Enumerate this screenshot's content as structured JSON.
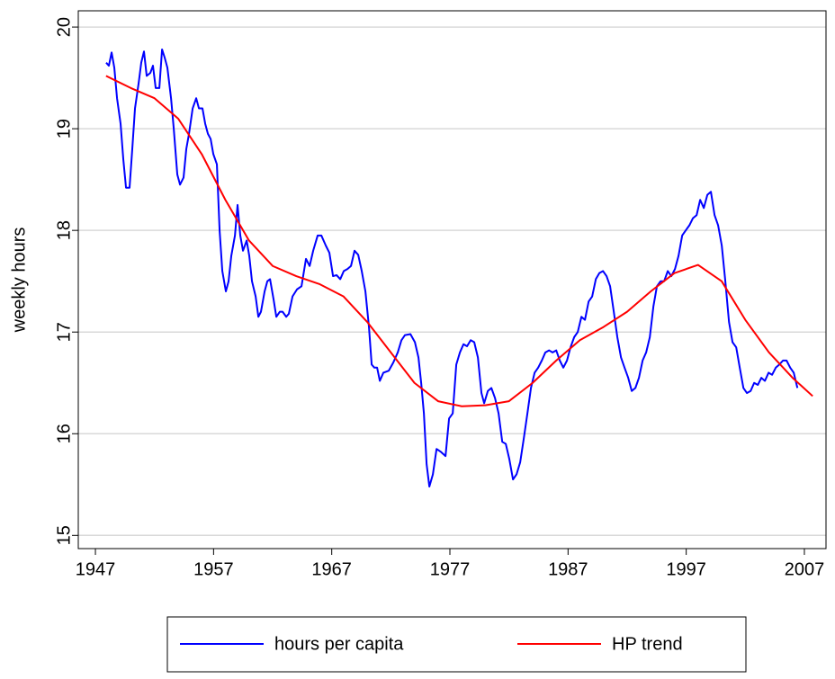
{
  "chart_data": {
    "type": "line",
    "ylabel": "weekly hours",
    "xlim": [
      1945.55,
      2008.83
    ],
    "xticks": [
      1947,
      1957,
      1967,
      1977,
      1987,
      1997,
      2007
    ],
    "ylim": [
      14.87,
      20.16
    ],
    "yticks": [
      15,
      16,
      17,
      18,
      19,
      20
    ],
    "grid": true,
    "legend": "bottom",
    "series": [
      {
        "name": "hours per capita",
        "color": "#0000ff",
        "x": [
          1947.91,
          1948.14,
          1948.37,
          1948.6,
          1948.83,
          1949.13,
          1949.36,
          1949.59,
          1949.89,
          1950.12,
          1950.35,
          1950.66,
          1950.88,
          1951.11,
          1951.34,
          1951.65,
          1951.87,
          1952.1,
          1952.41,
          1952.64,
          1952.86,
          1953.09,
          1953.4,
          1953.63,
          1953.93,
          1954.16,
          1954.46,
          1954.69,
          1954.92,
          1955.23,
          1955.53,
          1955.76,
          1956.06,
          1956.29,
          1956.52,
          1956.75,
          1956.98,
          1957.28,
          1957.51,
          1957.74,
          1958.04,
          1958.27,
          1958.5,
          1958.81,
          1959.03,
          1959.26,
          1959.49,
          1959.8,
          1960.02,
          1960.25,
          1960.56,
          1960.79,
          1961.01,
          1961.32,
          1961.55,
          1961.78,
          1962.08,
          1962.31,
          1962.61,
          1962.84,
          1963.15,
          1963.37,
          1963.68,
          1964.06,
          1964.44,
          1964.82,
          1965.13,
          1965.43,
          1965.81,
          1966.12,
          1966.5,
          1966.8,
          1967.11,
          1967.41,
          1967.72,
          1968.02,
          1968.33,
          1968.63,
          1968.93,
          1969.24,
          1969.54,
          1969.85,
          1970.15,
          1970.38,
          1970.61,
          1970.84,
          1971.07,
          1971.37,
          1971.83,
          1972.21,
          1972.59,
          1972.9,
          1973.2,
          1973.66,
          1974.04,
          1974.34,
          1974.57,
          1974.8,
          1975.03,
          1975.26,
          1975.56,
          1975.87,
          1976.25,
          1976.63,
          1976.93,
          1977.24,
          1977.54,
          1977.85,
          1978.15,
          1978.45,
          1978.76,
          1979.06,
          1979.37,
          1979.67,
          1979.9,
          1980.21,
          1980.51,
          1980.82,
          1981.12,
          1981.43,
          1981.73,
          1982.03,
          1982.34,
          1982.64,
          1982.95,
          1983.25,
          1983.56,
          1983.86,
          1984.17,
          1984.47,
          1984.78,
          1985.08,
          1985.39,
          1985.69,
          1986.0,
          1986.3,
          1986.6,
          1986.91,
          1987.21,
          1987.52,
          1987.82,
          1988.13,
          1988.43,
          1988.74,
          1989.04,
          1989.35,
          1989.65,
          1989.96,
          1990.26,
          1990.56,
          1990.87,
          1991.17,
          1991.48,
          1991.78,
          1992.09,
          1992.39,
          1992.7,
          1993.0,
          1993.31,
          1993.61,
          1993.92,
          1994.22,
          1994.52,
          1994.83,
          1995.13,
          1995.44,
          1995.74,
          1996.05,
          1996.35,
          1996.66,
          1996.96,
          1997.27,
          1997.57,
          1997.88,
          1998.18,
          1998.49,
          1998.79,
          1999.09,
          1999.4,
          1999.7,
          2000.01,
          2000.31,
          2000.62,
          2000.92,
          2001.23,
          2001.53,
          2001.84,
          2002.14,
          2002.45,
          2002.75,
          2003.06,
          2003.36,
          2003.66,
          2003.97,
          2004.27,
          2004.58,
          2004.88,
          2005.19,
          2005.49,
          2005.8,
          2006.1,
          2006.41
        ],
        "values": [
          19.65,
          19.62,
          19.75,
          19.6,
          19.3,
          19.05,
          18.7,
          18.42,
          18.42,
          18.8,
          19.2,
          19.45,
          19.65,
          19.76,
          19.52,
          19.55,
          19.62,
          19.4,
          19.4,
          19.78,
          19.7,
          19.6,
          19.3,
          19.0,
          18.55,
          18.45,
          18.52,
          18.8,
          18.95,
          19.2,
          19.3,
          19.2,
          19.2,
          19.05,
          18.95,
          18.9,
          18.75,
          18.65,
          18.0,
          17.6,
          17.4,
          17.5,
          17.75,
          17.95,
          18.25,
          17.95,
          17.8,
          17.9,
          17.75,
          17.5,
          17.35,
          17.15,
          17.2,
          17.4,
          17.5,
          17.52,
          17.32,
          17.15,
          17.2,
          17.2,
          17.15,
          17.18,
          17.35,
          17.42,
          17.45,
          17.72,
          17.65,
          17.8,
          17.95,
          17.95,
          17.85,
          17.78,
          17.55,
          17.56,
          17.52,
          17.6,
          17.62,
          17.65,
          17.8,
          17.76,
          17.6,
          17.4,
          17.05,
          16.68,
          16.65,
          16.65,
          16.52,
          16.6,
          16.62,
          16.7,
          16.8,
          16.92,
          16.97,
          16.98,
          16.9,
          16.75,
          16.5,
          16.2,
          15.7,
          15.48,
          15.6,
          15.85,
          15.82,
          15.78,
          16.15,
          16.2,
          16.68,
          16.8,
          16.88,
          16.86,
          16.92,
          16.9,
          16.75,
          16.4,
          16.3,
          16.42,
          16.45,
          16.35,
          16.2,
          15.92,
          15.9,
          15.75,
          15.55,
          15.6,
          15.72,
          15.95,
          16.2,
          16.45,
          16.6,
          16.65,
          16.72,
          16.8,
          16.82,
          16.8,
          16.82,
          16.72,
          16.65,
          16.72,
          16.85,
          16.95,
          17.0,
          17.15,
          17.12,
          17.3,
          17.35,
          17.52,
          17.58,
          17.6,
          17.55,
          17.45,
          17.2,
          16.95,
          16.75,
          16.65,
          16.55,
          16.42,
          16.45,
          16.55,
          16.72,
          16.8,
          16.95,
          17.25,
          17.45,
          17.5,
          17.5,
          17.6,
          17.55,
          17.62,
          17.75,
          17.95,
          18.0,
          18.05,
          18.12,
          18.15,
          18.3,
          18.22,
          18.35,
          18.38,
          18.15,
          18.05,
          17.85,
          17.5,
          17.1,
          16.9,
          16.85,
          16.65,
          16.45,
          16.4,
          16.42,
          16.5,
          16.48,
          16.55,
          16.52,
          16.6,
          16.58,
          16.65,
          16.68,
          16.72,
          16.72,
          16.65,
          16.6,
          16.45
        ]
      },
      {
        "name": "HP trend",
        "color": "#ff0000",
        "x": [
          1947.9,
          1950,
          1952,
          1954,
          1956,
          1958,
          1960,
          1962,
          1964,
          1966,
          1968,
          1970,
          1972,
          1974,
          1976,
          1978,
          1980,
          1982,
          1984,
          1986,
          1988,
          1990,
          1992,
          1994,
          1996,
          1998,
          2000,
          2002,
          2004,
          2006,
          2007.7
        ],
        "values": [
          19.52,
          19.4,
          19.3,
          19.1,
          18.75,
          18.3,
          17.9,
          17.65,
          17.55,
          17.47,
          17.35,
          17.1,
          16.8,
          16.5,
          16.32,
          16.27,
          16.28,
          16.32,
          16.5,
          16.72,
          16.92,
          17.05,
          17.2,
          17.4,
          17.58,
          17.66,
          17.5,
          17.12,
          16.8,
          16.55,
          16.37
        ]
      }
    ]
  }
}
